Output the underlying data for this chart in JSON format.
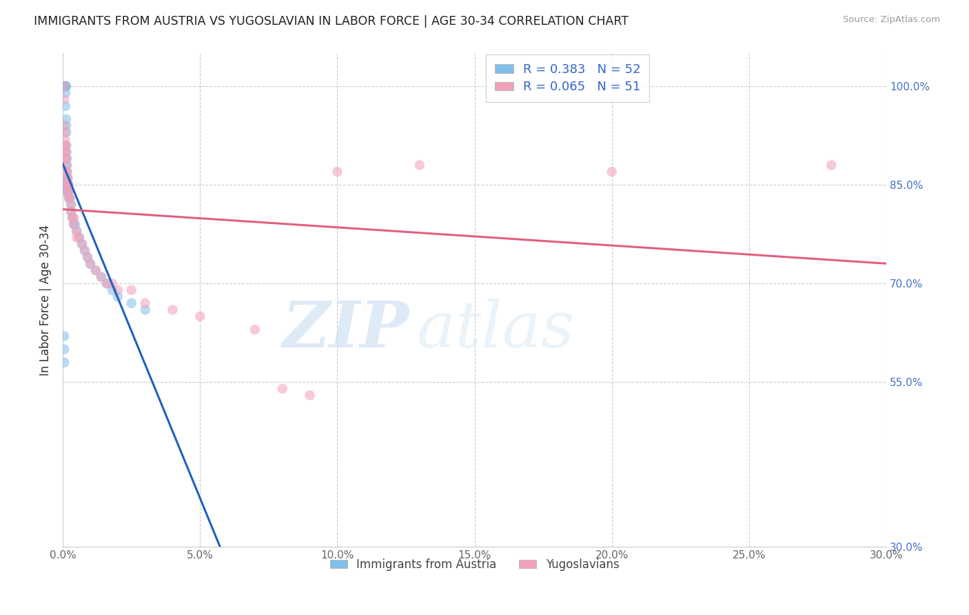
{
  "title": "IMMIGRANTS FROM AUSTRIA VS YUGOSLAVIAN IN LABOR FORCE | AGE 30-34 CORRELATION CHART",
  "source": "Source: ZipAtlas.com",
  "ylabel": "In Labor Force | Age 30-34",
  "legend_label_blue": "Immigrants from Austria",
  "legend_label_pink": "Yugoslavians",
  "R_blue": 0.383,
  "N_blue": 52,
  "R_pink": 0.065,
  "N_pink": 51,
  "xlim": [
    0.0,
    0.3
  ],
  "ylim": [
    0.3,
    1.05
  ],
  "xticks": [
    0.0,
    0.05,
    0.1,
    0.15,
    0.2,
    0.25,
    0.3
  ],
  "yticks": [
    0.3,
    0.55,
    0.7,
    0.85,
    1.0
  ],
  "ytick_labels": [
    "30.0%",
    "55.0%",
    "70.0%",
    "85.0%",
    "100.0%"
  ],
  "xtick_labels": [
    "0.0%",
    "5.0%",
    "10.0%",
    "15.0%",
    "20.0%",
    "25.0%",
    "30.0%"
  ],
  "watermark_zip": "ZIP",
  "watermark_atlas": "atlas",
  "blue_color": "#7fbfea",
  "pink_color": "#f4a0b8",
  "line_blue": "#2060c0",
  "line_pink": "#e06080",
  "blue_scatter_x": [
    0.0005,
    0.0005,
    0.0005,
    0.0007,
    0.0008,
    0.0008,
    0.001,
    0.001,
    0.001,
    0.001,
    0.001,
    0.001,
    0.001,
    0.001,
    0.001,
    0.001,
    0.0012,
    0.0012,
    0.0013,
    0.0013,
    0.0014,
    0.0015,
    0.0015,
    0.0015,
    0.0015,
    0.0017,
    0.0018,
    0.0018,
    0.002,
    0.002,
    0.002,
    0.0022,
    0.0023,
    0.0025,
    0.003,
    0.003,
    0.0035,
    0.004,
    0.0045,
    0.005,
    0.006,
    0.007,
    0.008,
    0.009,
    0.01,
    0.012,
    0.014,
    0.016,
    0.018,
    0.02,
    0.025,
    0.03
  ],
  "blue_scatter_y": [
    0.62,
    0.6,
    0.58,
    0.85,
    0.85,
    0.84,
    1.0,
    1.0,
    1.0,
    1.0,
    1.0,
    1.0,
    1.0,
    1.0,
    0.99,
    0.97,
    0.95,
    0.94,
    0.93,
    0.91,
    0.9,
    0.89,
    0.88,
    0.87,
    0.86,
    0.86,
    0.85,
    0.84,
    0.85,
    0.85,
    0.84,
    0.84,
    0.83,
    0.83,
    0.82,
    0.81,
    0.8,
    0.79,
    0.79,
    0.78,
    0.77,
    0.76,
    0.75,
    0.74,
    0.73,
    0.72,
    0.71,
    0.7,
    0.69,
    0.68,
    0.67,
    0.66
  ],
  "pink_scatter_x": [
    0.0005,
    0.0005,
    0.0005,
    0.0007,
    0.0008,
    0.001,
    0.001,
    0.001,
    0.001,
    0.001,
    0.0012,
    0.0013,
    0.0015,
    0.0015,
    0.0017,
    0.0018,
    0.0018,
    0.002,
    0.002,
    0.002,
    0.002,
    0.0022,
    0.0025,
    0.003,
    0.003,
    0.0035,
    0.004,
    0.004,
    0.005,
    0.005,
    0.006,
    0.007,
    0.008,
    0.009,
    0.01,
    0.012,
    0.014,
    0.016,
    0.018,
    0.02,
    0.025,
    0.03,
    0.04,
    0.05,
    0.07,
    0.08,
    0.09,
    0.1,
    0.13,
    0.2,
    0.28
  ],
  "pink_scatter_y": [
    1.0,
    0.98,
    0.94,
    0.93,
    0.92,
    0.91,
    0.91,
    0.9,
    0.9,
    0.89,
    0.89,
    0.88,
    0.87,
    0.87,
    0.86,
    0.86,
    0.85,
    0.85,
    0.85,
    0.84,
    0.84,
    0.83,
    0.83,
    0.82,
    0.81,
    0.8,
    0.8,
    0.79,
    0.78,
    0.77,
    0.77,
    0.76,
    0.75,
    0.74,
    0.73,
    0.72,
    0.71,
    0.7,
    0.7,
    0.69,
    0.69,
    0.67,
    0.66,
    0.65,
    0.63,
    0.54,
    0.53,
    0.87,
    0.88,
    0.87,
    0.88
  ]
}
